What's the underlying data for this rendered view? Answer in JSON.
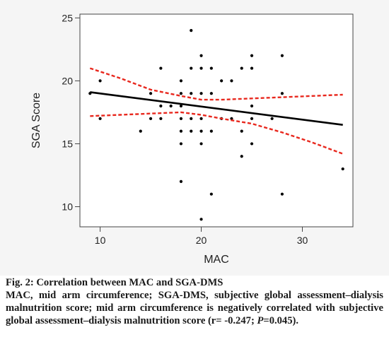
{
  "chart_data": {
    "type": "scatter",
    "title": "",
    "xlabel": "MAC",
    "ylabel": "SGA Score",
    "xlim": [
      8,
      35
    ],
    "ylim": [
      8.4,
      25.3
    ],
    "xticks": [
      10,
      20,
      30
    ],
    "yticks": [
      10,
      15,
      20,
      25
    ],
    "grid": false,
    "series": [
      {
        "kind": "points",
        "color": "#000000",
        "points": [
          [
            9,
            19
          ],
          [
            10,
            17
          ],
          [
            10,
            20
          ],
          [
            14,
            16
          ],
          [
            15,
            17
          ],
          [
            15,
            19
          ],
          [
            16,
            17
          ],
          [
            16,
            18
          ],
          [
            16,
            21
          ],
          [
            17,
            18
          ],
          [
            18,
            12
          ],
          [
            18,
            15
          ],
          [
            18,
            16
          ],
          [
            18,
            17
          ],
          [
            18,
            18
          ],
          [
            18,
            19
          ],
          [
            18,
            20
          ],
          [
            19,
            16
          ],
          [
            19,
            17
          ],
          [
            19,
            19
          ],
          [
            19,
            21
          ],
          [
            19,
            24
          ],
          [
            20,
            9
          ],
          [
            20,
            15
          ],
          [
            20,
            16
          ],
          [
            20,
            17
          ],
          [
            20,
            19
          ],
          [
            20,
            21
          ],
          [
            20,
            22
          ],
          [
            21,
            11
          ],
          [
            21,
            16
          ],
          [
            21,
            19
          ],
          [
            21,
            21
          ],
          [
            22,
            17
          ],
          [
            22,
            20
          ],
          [
            23,
            17
          ],
          [
            23,
            20
          ],
          [
            24,
            14
          ],
          [
            24,
            16
          ],
          [
            24,
            21
          ],
          [
            25,
            15
          ],
          [
            25,
            17
          ],
          [
            25,
            18
          ],
          [
            25,
            21
          ],
          [
            25,
            22
          ],
          [
            27,
            17
          ],
          [
            28,
            11
          ],
          [
            28,
            19
          ],
          [
            28,
            22
          ],
          [
            34,
            13
          ]
        ]
      },
      {
        "kind": "regression",
        "color": "#000000",
        "points": [
          [
            9,
            19.1
          ],
          [
            34,
            16.5
          ]
        ]
      },
      {
        "kind": "confidence-upper",
        "color": "#e8281e",
        "points": [
          [
            9,
            21.0
          ],
          [
            12,
            20.2
          ],
          [
            15,
            19.3
          ],
          [
            18,
            18.8
          ],
          [
            20,
            18.5
          ],
          [
            22,
            18.5
          ],
          [
            25,
            18.6
          ],
          [
            28,
            18.7
          ],
          [
            31,
            18.8
          ],
          [
            34,
            18.9
          ]
        ]
      },
      {
        "kind": "confidence-lower",
        "color": "#e8281e",
        "points": [
          [
            9,
            17.2
          ],
          [
            12,
            17.3
          ],
          [
            15,
            17.4
          ],
          [
            18,
            17.5
          ],
          [
            20,
            17.3
          ],
          [
            22,
            17.0
          ],
          [
            25,
            16.6
          ],
          [
            28,
            15.9
          ],
          [
            31,
            15.1
          ],
          [
            34,
            14.2
          ]
        ]
      }
    ]
  },
  "caption": {
    "title": "Fig. 2: Correlation between MAC and SGA-DMS",
    "body_prefix": "MAC, mid arm circumference; SGA-DMS, subjective global assessment–dialysis malnutrition score; mid arm circumference is negatively correlated with subjective global assessment–dialysis malnutrition score (r= -0.247; ",
    "p_symbol": "P",
    "body_suffix": "=0.045)."
  }
}
